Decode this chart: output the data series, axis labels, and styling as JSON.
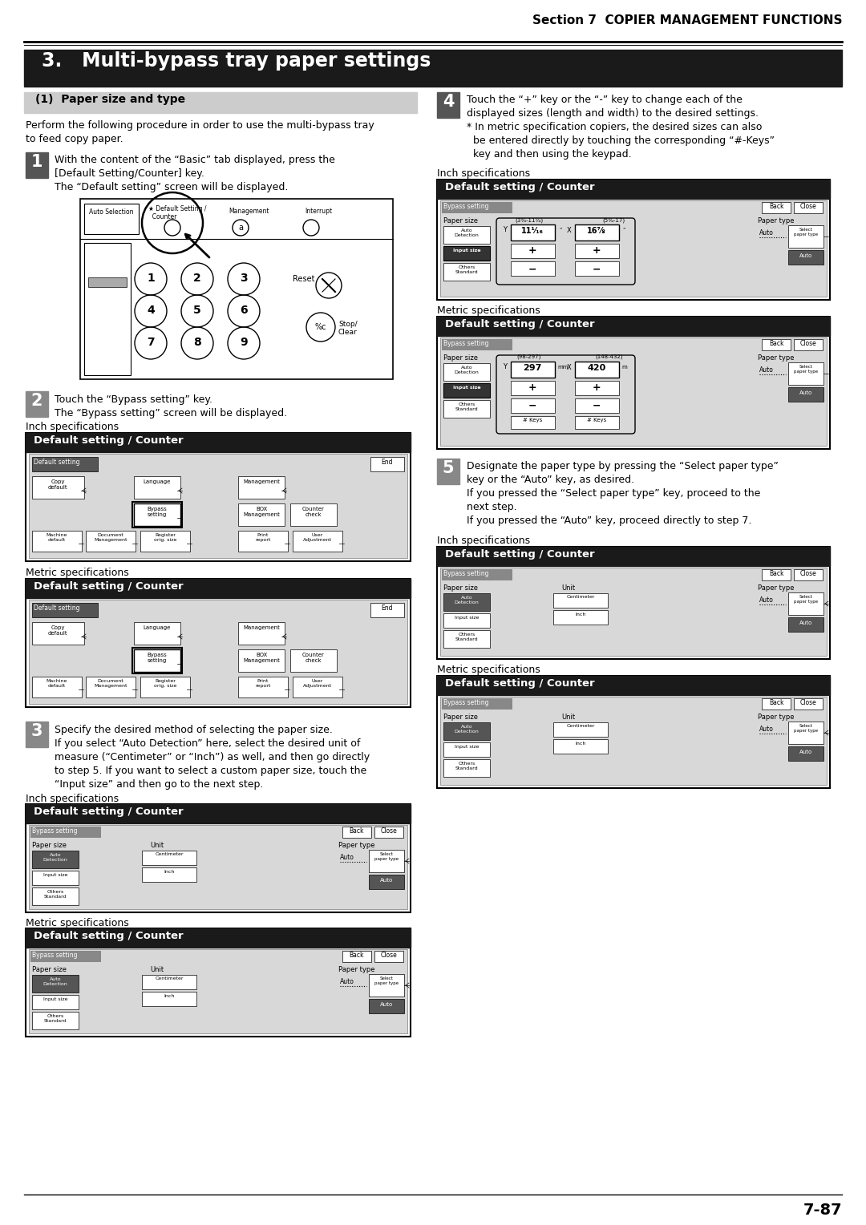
{
  "page_title": "Section 7  COPIER MANAGEMENT FUNCTIONS",
  "section_title": "3.   Multi-bypass tray paper settings",
  "subsection_title": "(1)  Paper size and type",
  "intro_text": "Perform the following procedure in order to use the multi-bypass tray\nto feed copy paper.",
  "page_number": "7-87",
  "bg_color": "#ffffff",
  "section_bg": "#1a1a1a",
  "subsection_bg": "#cccccc",
  "screen_title_bg": "#1a1a1a",
  "step_num_bg_dark": "#555555",
  "step_num_bg_gray": "#888888"
}
